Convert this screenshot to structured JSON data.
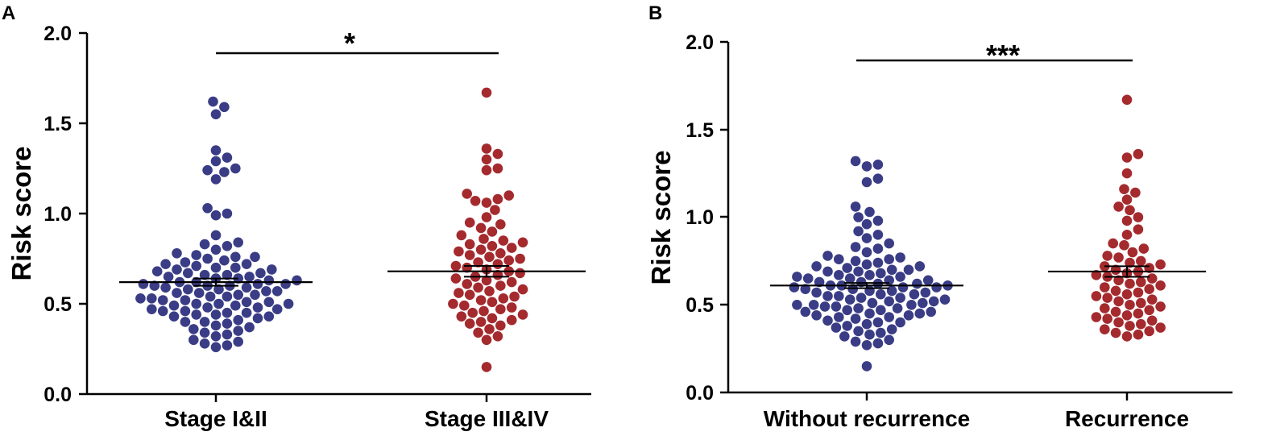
{
  "chart_data": [
    {
      "type": "scatter",
      "subtype": "beeswarm",
      "panel": "A",
      "ylabel": "Risk score",
      "ylim": [
        0.0,
        2.0
      ],
      "yticks": [
        "0.0",
        "0.5",
        "1.0",
        "1.5",
        "2.0"
      ],
      "significance": "*",
      "colors": {
        "Stage I&II": "#3a3d85",
        "Stage III&IV": "#a42a2e"
      },
      "groups": [
        {
          "name": "Stage I&II",
          "mean": 0.62,
          "sem": 0.02,
          "values": [
            1.62,
            1.59,
            1.55,
            1.35,
            1.31,
            1.29,
            1.25,
            1.24,
            1.23,
            1.19,
            1.03,
            1.0,
            0.99,
            0.88,
            0.84,
            0.83,
            0.82,
            0.8,
            0.78,
            0.77,
            0.76,
            0.76,
            0.75,
            0.74,
            0.73,
            0.72,
            0.72,
            0.71,
            0.7,
            0.7,
            0.69,
            0.69,
            0.68,
            0.67,
            0.67,
            0.66,
            0.66,
            0.65,
            0.65,
            0.64,
            0.64,
            0.63,
            0.63,
            0.62,
            0.62,
            0.61,
            0.61,
            0.61,
            0.6,
            0.6,
            0.6,
            0.59,
            0.59,
            0.58,
            0.58,
            0.57,
            0.57,
            0.56,
            0.56,
            0.55,
            0.55,
            0.54,
            0.54,
            0.53,
            0.53,
            0.52,
            0.52,
            0.51,
            0.51,
            0.5,
            0.5,
            0.5,
            0.49,
            0.49,
            0.48,
            0.48,
            0.47,
            0.47,
            0.46,
            0.46,
            0.45,
            0.45,
            0.44,
            0.44,
            0.43,
            0.43,
            0.42,
            0.41,
            0.4,
            0.4,
            0.39,
            0.38,
            0.37,
            0.36,
            0.35,
            0.34,
            0.33,
            0.32,
            0.3,
            0.29,
            0.28,
            0.27,
            0.26
          ]
        },
        {
          "name": "Stage III&IV",
          "mean": 0.68,
          "sem": 0.03,
          "values": [
            1.67,
            1.36,
            1.33,
            1.3,
            1.25,
            1.24,
            1.11,
            1.1,
            1.08,
            1.07,
            1.06,
            1.02,
            0.98,
            0.95,
            0.94,
            0.92,
            0.9,
            0.88,
            0.86,
            0.85,
            0.84,
            0.83,
            0.82,
            0.81,
            0.8,
            0.79,
            0.78,
            0.77,
            0.76,
            0.75,
            0.74,
            0.73,
            0.72,
            0.71,
            0.7,
            0.69,
            0.68,
            0.67,
            0.66,
            0.65,
            0.64,
            0.63,
            0.62,
            0.61,
            0.6,
            0.59,
            0.58,
            0.57,
            0.56,
            0.55,
            0.54,
            0.53,
            0.52,
            0.51,
            0.5,
            0.49,
            0.48,
            0.47,
            0.46,
            0.45,
            0.44,
            0.43,
            0.42,
            0.41,
            0.4,
            0.39,
            0.38,
            0.36,
            0.34,
            0.32,
            0.3,
            0.15
          ]
        }
      ]
    },
    {
      "type": "scatter",
      "subtype": "beeswarm",
      "panel": "B",
      "ylabel": "Risk score",
      "ylim": [
        0.0,
        2.0
      ],
      "yticks": [
        "0.0",
        "0.5",
        "1.0",
        "1.5",
        "2.0"
      ],
      "significance": "***",
      "colors": {
        "Without recurrence": "#3a3d85",
        "Recurrence": "#a42a2e"
      },
      "groups": [
        {
          "name": "Without recurrence",
          "mean": 0.61,
          "sem": 0.015,
          "values": [
            1.32,
            1.3,
            1.29,
            1.22,
            1.2,
            1.06,
            1.03,
            1.0,
            0.98,
            0.96,
            0.92,
            0.9,
            0.88,
            0.85,
            0.83,
            0.82,
            0.8,
            0.78,
            0.77,
            0.76,
            0.76,
            0.75,
            0.74,
            0.73,
            0.72,
            0.72,
            0.71,
            0.7,
            0.7,
            0.69,
            0.69,
            0.68,
            0.67,
            0.67,
            0.66,
            0.66,
            0.65,
            0.65,
            0.64,
            0.64,
            0.63,
            0.63,
            0.62,
            0.62,
            0.61,
            0.61,
            0.61,
            0.6,
            0.6,
            0.6,
            0.59,
            0.59,
            0.58,
            0.58,
            0.57,
            0.57,
            0.56,
            0.56,
            0.55,
            0.55,
            0.54,
            0.54,
            0.53,
            0.53,
            0.52,
            0.52,
            0.51,
            0.51,
            0.5,
            0.5,
            0.5,
            0.49,
            0.49,
            0.48,
            0.48,
            0.47,
            0.47,
            0.46,
            0.46,
            0.45,
            0.45,
            0.44,
            0.44,
            0.43,
            0.43,
            0.42,
            0.41,
            0.4,
            0.4,
            0.39,
            0.38,
            0.37,
            0.36,
            0.35,
            0.34,
            0.33,
            0.32,
            0.3,
            0.29,
            0.28,
            0.27,
            0.15
          ]
        },
        {
          "name": "Recurrence",
          "mean": 0.69,
          "sem": 0.03,
          "values": [
            1.67,
            1.36,
            1.34,
            1.25,
            1.16,
            1.14,
            1.1,
            1.06,
            1.04,
            1.0,
            0.98,
            0.93,
            0.9,
            0.85,
            0.84,
            0.82,
            0.8,
            0.78,
            0.77,
            0.75,
            0.74,
            0.73,
            0.72,
            0.71,
            0.7,
            0.69,
            0.68,
            0.67,
            0.66,
            0.65,
            0.64,
            0.63,
            0.62,
            0.61,
            0.6,
            0.59,
            0.58,
            0.57,
            0.56,
            0.55,
            0.54,
            0.53,
            0.52,
            0.51,
            0.5,
            0.49,
            0.48,
            0.47,
            0.46,
            0.45,
            0.44,
            0.43,
            0.42,
            0.41,
            0.4,
            0.39,
            0.38,
            0.37,
            0.36,
            0.35,
            0.34,
            0.33,
            0.32
          ]
        }
      ]
    }
  ]
}
